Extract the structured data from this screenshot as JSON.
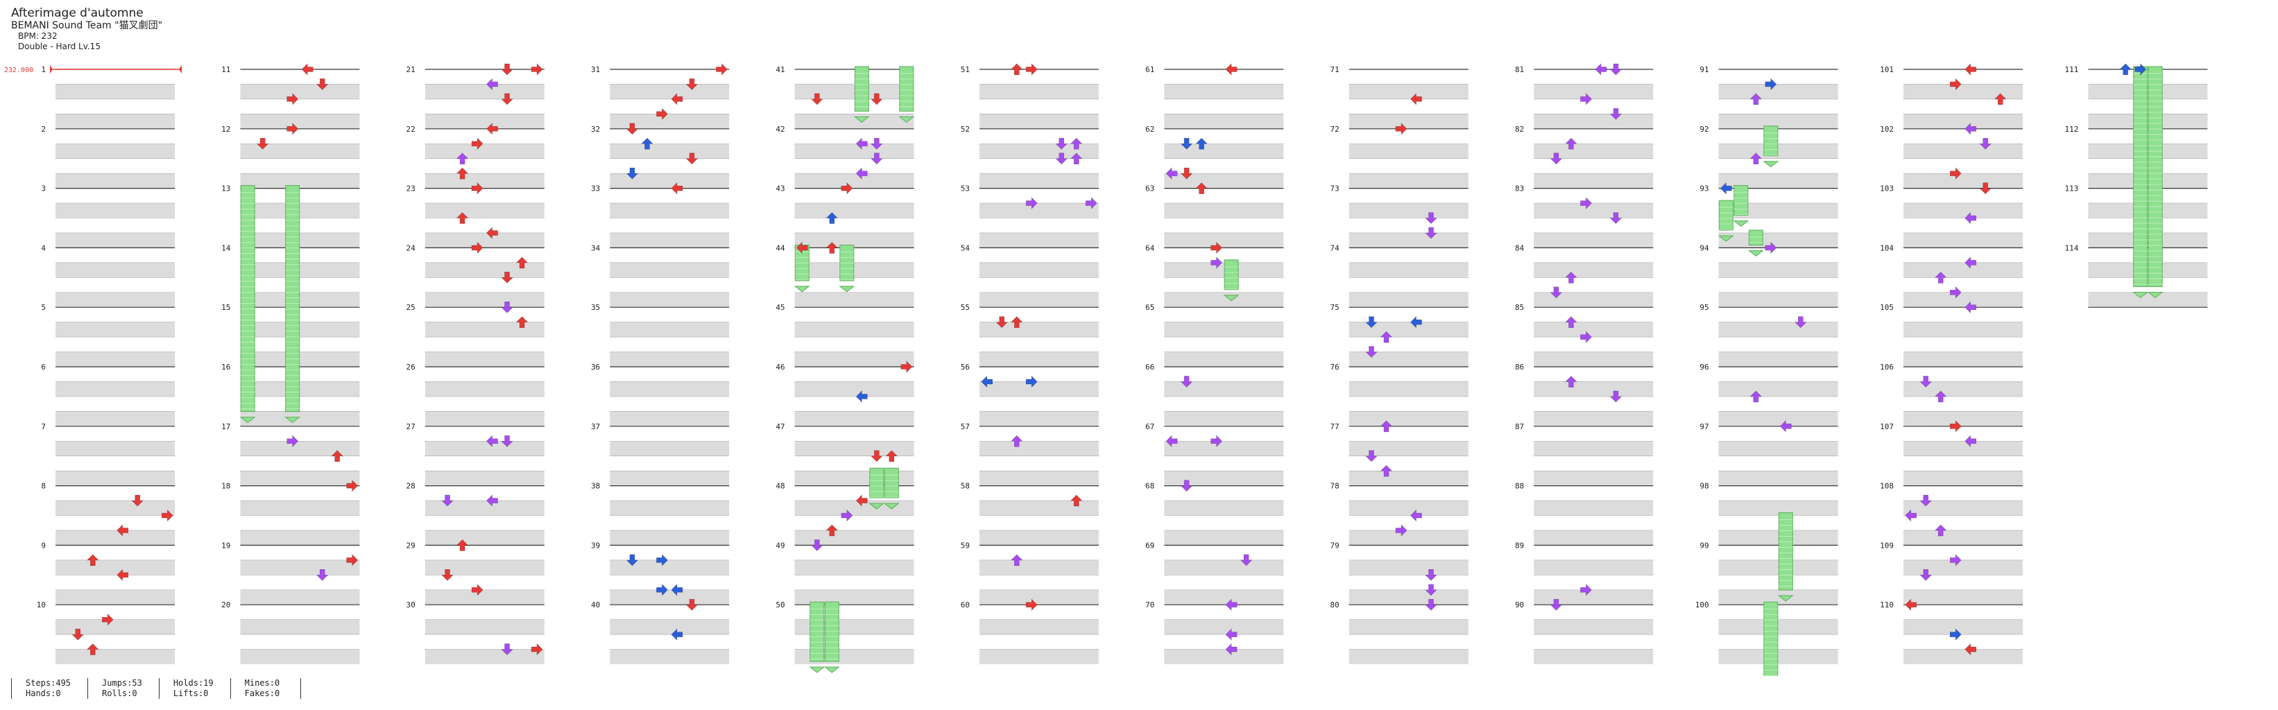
{
  "song": {
    "title": "Afterimage d'automne",
    "artist": "BEMANI Sound Team \"猫叉劇団\"",
    "bpm": "BPM: 232",
    "chart": "Double - Hard Lv.15"
  },
  "bpm_marker": "232.000",
  "colors": {
    "red": "#e53935",
    "purple": "#a64cf0",
    "blue": "#2b5fd9",
    "green": "#8fe08f"
  },
  "chart_data": {
    "type": "table",
    "layout": "stepchart",
    "lanes": 8,
    "measures_per_column": 10,
    "total_measures": 114,
    "measure_labels": [
      "1",
      "2",
      "3",
      "4",
      "5",
      "6",
      "7",
      "8",
      "9",
      "10",
      "11",
      "12",
      "13",
      "14",
      "15",
      "16",
      "17",
      "18",
      "19",
      "20",
      "21",
      "22",
      "23",
      "24",
      "25",
      "26",
      "27",
      "28",
      "29",
      "30",
      "31",
      "32",
      "33",
      "34",
      "35",
      "36",
      "37",
      "38",
      "39",
      "40",
      "41",
      "42",
      "43",
      "44",
      "45",
      "46",
      "47",
      "48",
      "49",
      "50",
      "51",
      "52",
      "53",
      "54",
      "55",
      "56",
      "57",
      "58",
      "59",
      "60",
      "61",
      "62",
      "63",
      "64",
      "65",
      "66",
      "67",
      "68",
      "69",
      "70",
      "71",
      "72",
      "73",
      "74",
      "75",
      "76",
      "77",
      "78",
      "79",
      "80",
      "81",
      "82",
      "83",
      "84",
      "85",
      "86",
      "87",
      "88",
      "89",
      "90",
      "91",
      "92",
      "93",
      "94",
      "95",
      "96",
      "97",
      "98",
      "99",
      "100",
      "101",
      "102",
      "103",
      "104",
      "105",
      "106",
      "107",
      "108",
      "109",
      "110",
      "111",
      "112",
      "113",
      "114"
    ],
    "holds": [
      {
        "lane": 1,
        "start": 12.0,
        "end": 15.8
      },
      {
        "lane": 4,
        "start": 12.0,
        "end": 15.8
      },
      {
        "lane": 5,
        "start": 40.0,
        "end": 40.75
      },
      {
        "lane": 8,
        "start": 40.0,
        "end": 40.75
      },
      {
        "lane": 1,
        "start": 43.0,
        "end": 43.6
      },
      {
        "lane": 4,
        "start": 43.0,
        "end": 43.6
      },
      {
        "lane": 6,
        "start": 46.75,
        "end": 47.25
      },
      {
        "lane": 7,
        "start": 46.75,
        "end": 47.25
      },
      {
        "lane": 2,
        "start": 49.0,
        "end": 50.0
      },
      {
        "lane": 3,
        "start": 49.0,
        "end": 50.0
      },
      {
        "lane": 5,
        "start": 63.25,
        "end": 63.75
      },
      {
        "lane": 4,
        "start": 91.0,
        "end": 91.5
      },
      {
        "lane": 2,
        "start": 92.0,
        "end": 92.5
      },
      {
        "lane": 1,
        "start": 92.25,
        "end": 92.75
      },
      {
        "lane": 3,
        "start": 92.75,
        "end": 93.0
      },
      {
        "lane": 5,
        "start": 97.5,
        "end": 98.8
      },
      {
        "lane": 4,
        "start": 99.0,
        "end": 100.8
      },
      {
        "lane": 4,
        "start": 110.0,
        "end": 113.7
      },
      {
        "lane": 5,
        "start": 110.0,
        "end": 113.7
      }
    ],
    "notes": [
      [
        7.25,
        6,
        "red"
      ],
      [
        7.5,
        8,
        "red"
      ],
      [
        7.75,
        5,
        "red"
      ],
      [
        8.25,
        3,
        "red"
      ],
      [
        8.5,
        5,
        "red"
      ],
      [
        9.25,
        4,
        "red"
      ],
      [
        9.5,
        2,
        "red"
      ],
      [
        9.75,
        3,
        "red"
      ],
      [
        10.0,
        5,
        "red"
      ],
      [
        10.25,
        6,
        "red"
      ],
      [
        10.5,
        4,
        "red"
      ],
      [
        11.0,
        4,
        "red"
      ],
      [
        11.25,
        2,
        "red"
      ],
      [
        16.25,
        4,
        "purple"
      ],
      [
        16.5,
        7,
        "red"
      ],
      [
        17.0,
        8,
        "red"
      ],
      [
        18.25,
        8,
        "red"
      ],
      [
        18.5,
        6,
        "purple"
      ],
      [
        20.0,
        6,
        "red"
      ],
      [
        20.0,
        8,
        "red"
      ],
      [
        20.25,
        5,
        "purple"
      ],
      [
        20.5,
        6,
        "red"
      ],
      [
        21.0,
        5,
        "red"
      ],
      [
        21.25,
        4,
        "red"
      ],
      [
        21.5,
        3,
        "purple"
      ],
      [
        21.75,
        3,
        "red"
      ],
      [
        22.0,
        4,
        "red"
      ],
      [
        22.5,
        3,
        "red"
      ],
      [
        22.75,
        5,
        "red"
      ],
      [
        23.0,
        4,
        "red"
      ],
      [
        23.25,
        7,
        "red"
      ],
      [
        23.5,
        6,
        "red"
      ],
      [
        24.0,
        6,
        "purple"
      ],
      [
        24.25,
        7,
        "red"
      ],
      [
        26.25,
        5,
        "purple"
      ],
      [
        26.25,
        6,
        "purple"
      ],
      [
        27.25,
        2,
        "purple"
      ],
      [
        27.25,
        5,
        "purple"
      ],
      [
        28.0,
        3,
        "red"
      ],
      [
        28.5,
        2,
        "red"
      ],
      [
        28.75,
        4,
        "red"
      ],
      [
        29.75,
        8,
        "red"
      ],
      [
        29.75,
        6,
        "purple"
      ],
      [
        30.0,
        8,
        "red"
      ],
      [
        30.25,
        6,
        "red"
      ],
      [
        30.5,
        5,
        "red"
      ],
      [
        30.75,
        4,
        "red"
      ],
      [
        31.0,
        2,
        "red"
      ],
      [
        31.25,
        3,
        "blue"
      ],
      [
        31.5,
        6,
        "red"
      ],
      [
        31.75,
        2,
        "blue"
      ],
      [
        32.0,
        5,
        "red"
      ],
      [
        38.25,
        2,
        "blue"
      ],
      [
        38.25,
        4,
        "blue"
      ],
      [
        38.75,
        4,
        "blue"
      ],
      [
        38.75,
        5,
        "blue"
      ],
      [
        39.0,
        6,
        "red"
      ],
      [
        39.5,
        5,
        "blue"
      ],
      [
        40.5,
        2,
        "red"
      ],
      [
        40.5,
        6,
        "red"
      ],
      [
        41.25,
        5,
        "purple"
      ],
      [
        41.25,
        6,
        "purple"
      ],
      [
        41.5,
        6,
        "purple"
      ],
      [
        41.75,
        5,
        "purple"
      ],
      [
        42.0,
        4,
        "red"
      ],
      [
        42.5,
        3,
        "blue"
      ],
      [
        43.0,
        1,
        "red"
      ],
      [
        43.0,
        3,
        "red"
      ],
      [
        45.0,
        8,
        "red"
      ],
      [
        45.5,
        5,
        "blue"
      ],
      [
        46.5,
        7,
        "red"
      ],
      [
        46.5,
        6,
        "red"
      ],
      [
        47.25,
        5,
        "red"
      ],
      [
        47.5,
        4,
        "purple"
      ],
      [
        47.75,
        3,
        "red"
      ],
      [
        48.0,
        2,
        "purple"
      ],
      [
        50.0,
        3,
        "red"
      ],
      [
        50.0,
        4,
        "red"
      ],
      [
        51.25,
        6,
        "purple"
      ],
      [
        51.25,
        7,
        "purple"
      ],
      [
        51.5,
        6,
        "purple"
      ],
      [
        51.5,
        7,
        "purple"
      ],
      [
        52.25,
        4,
        "purple"
      ],
      [
        52.25,
        8,
        "purple"
      ],
      [
        54.25,
        2,
        "red"
      ],
      [
        54.25,
        3,
        "red"
      ],
      [
        55.25,
        1,
        "blue"
      ],
      [
        55.25,
        4,
        "blue"
      ],
      [
        56.25,
        3,
        "purple"
      ],
      [
        57.25,
        7,
        "red"
      ],
      [
        58.25,
        3,
        "purple"
      ],
      [
        59.0,
        4,
        "red"
      ],
      [
        60.0,
        5,
        "red"
      ],
      [
        61.25,
        2,
        "blue"
      ],
      [
        61.25,
        3,
        "blue"
      ],
      [
        61.75,
        1,
        "purple"
      ],
      [
        61.75,
        2,
        "red"
      ],
      [
        62.0,
        3,
        "red"
      ],
      [
        63.0,
        4,
        "red"
      ],
      [
        63.25,
        4,
        "purple"
      ],
      [
        65.25,
        2,
        "purple"
      ],
      [
        66.25,
        1,
        "purple"
      ],
      [
        66.25,
        4,
        "purple"
      ],
      [
        67.0,
        2,
        "purple"
      ],
      [
        68.25,
        6,
        "purple"
      ],
      [
        69.0,
        5,
        "purple"
      ],
      [
        69.5,
        5,
        "purple"
      ],
      [
        69.75,
        5,
        "purple"
      ],
      [
        70.5,
        5,
        "red"
      ],
      [
        71.0,
        4,
        "red"
      ],
      [
        72.5,
        6,
        "purple"
      ],
      [
        72.75,
        6,
        "purple"
      ],
      [
        74.25,
        2,
        "blue"
      ],
      [
        74.25,
        5,
        "blue"
      ],
      [
        74.5,
        3,
        "purple"
      ],
      [
        74.75,
        2,
        "purple"
      ],
      [
        76.0,
        3,
        "purple"
      ],
      [
        76.5,
        2,
        "purple"
      ],
      [
        76.75,
        3,
        "purple"
      ],
      [
        77.5,
        5,
        "purple"
      ],
      [
        77.75,
        4,
        "purple"
      ],
      [
        78.5,
        6,
        "purple"
      ],
      [
        78.75,
        6,
        "purple"
      ],
      [
        79.0,
        6,
        "purple"
      ],
      [
        80.0,
        5,
        "purple"
      ],
      [
        80.0,
        6,
        "purple"
      ],
      [
        80.5,
        4,
        "purple"
      ],
      [
        80.75,
        6,
        "purple"
      ],
      [
        81.25,
        3,
        "purple"
      ],
      [
        81.5,
        2,
        "purple"
      ],
      [
        82.25,
        4,
        "purple"
      ],
      [
        82.5,
        6,
        "purple"
      ],
      [
        83.5,
        3,
        "purple"
      ],
      [
        83.75,
        2,
        "purple"
      ],
      [
        84.25,
        3,
        "purple"
      ],
      [
        84.5,
        4,
        "purple"
      ],
      [
        85.25,
        3,
        "purple"
      ],
      [
        85.5,
        6,
        "purple"
      ],
      [
        88.75,
        4,
        "purple"
      ],
      [
        89.0,
        2,
        "purple"
      ],
      [
        90.25,
        4,
        "blue"
      ],
      [
        90.5,
        3,
        "purple"
      ],
      [
        91.5,
        3,
        "purple"
      ],
      [
        92.0,
        1,
        "blue"
      ],
      [
        93.0,
        4,
        "purple"
      ],
      [
        94.25,
        6,
        "purple"
      ],
      [
        95.5,
        3,
        "purple"
      ],
      [
        96.0,
        5,
        "purple"
      ],
      [
        100.0,
        5,
        "red"
      ],
      [
        100.25,
        4,
        "red"
      ],
      [
        100.5,
        7,
        "red"
      ],
      [
        101.0,
        5,
        "purple"
      ],
      [
        101.25,
        6,
        "purple"
      ],
      [
        101.75,
        4,
        "red"
      ],
      [
        102.0,
        6,
        "red"
      ],
      [
        102.5,
        5,
        "purple"
      ],
      [
        103.25,
        5,
        "purple"
      ],
      [
        103.5,
        3,
        "purple"
      ],
      [
        103.75,
        4,
        "purple"
      ],
      [
        104.0,
        5,
        "purple"
      ],
      [
        105.25,
        2,
        "purple"
      ],
      [
        105.5,
        3,
        "purple"
      ],
      [
        106.0,
        4,
        "red"
      ],
      [
        106.25,
        5,
        "purple"
      ],
      [
        107.25,
        2,
        "purple"
      ],
      [
        107.5,
        1,
        "purple"
      ],
      [
        107.75,
        3,
        "purple"
      ],
      [
        108.25,
        4,
        "purple"
      ],
      [
        108.5,
        2,
        "purple"
      ],
      [
        109.0,
        1,
        "red"
      ],
      [
        109.5,
        4,
        "blue"
      ],
      [
        109.75,
        5,
        "red"
      ],
      [
        110.0,
        3,
        "blue"
      ],
      [
        110.0,
        4,
        "blue"
      ]
    ]
  },
  "stats": [
    {
      "top": "Steps:495",
      "bottom": "Hands:0"
    },
    {
      "top": "Jumps:53",
      "bottom": "Rolls:0"
    },
    {
      "top": "Holds:19",
      "bottom": "Lifts:0"
    },
    {
      "top": "Mines:0",
      "bottom": "Fakes:0"
    }
  ]
}
